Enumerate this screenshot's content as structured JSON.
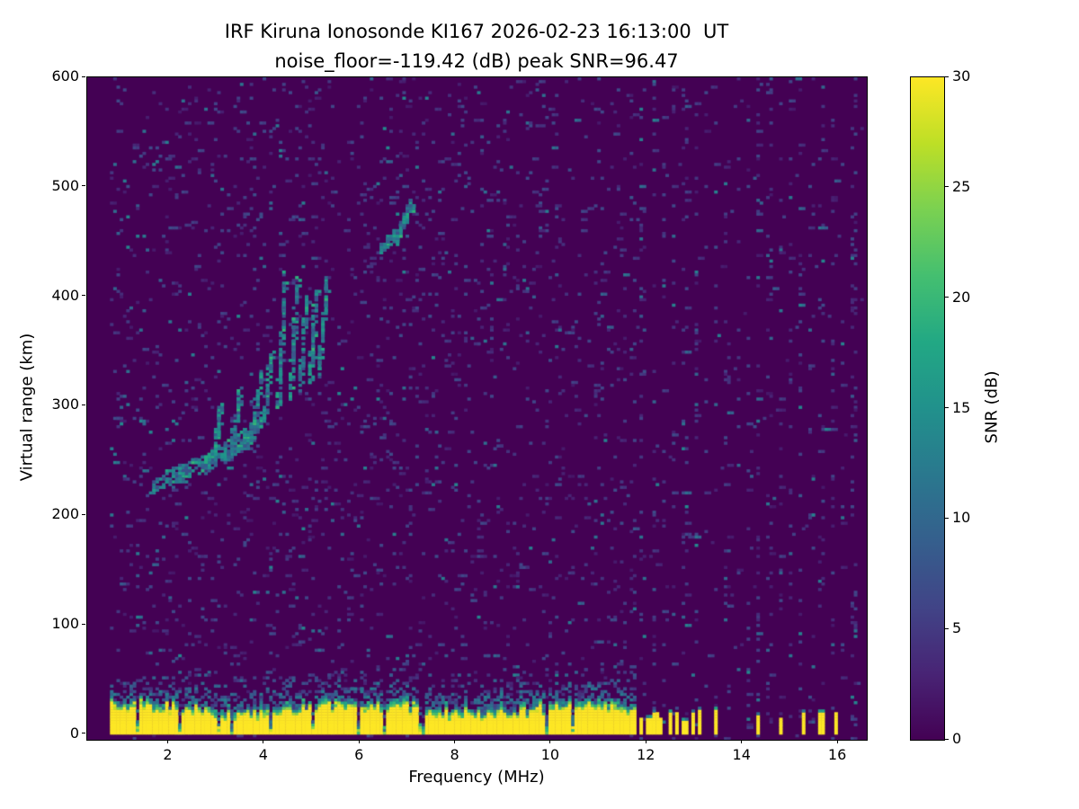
{
  "chart_data": {
    "type": "heatmap",
    "title": "IRF Kiruna Ionosonde KI167 2026-02-23 16:13:00  UT",
    "subtitle": "noise_floor=-119.42 (dB) peak SNR=96.47",
    "station": "IRF Kiruna Ionosonde KI167",
    "timestamp_ut": "2026-02-23 16:13:00 UT",
    "noise_floor_db": -119.42,
    "peak_snr_db": 96.47,
    "xlabel": "Frequency (MHz)",
    "ylabel": "Virtual range (km)",
    "xlim": [
      0.3,
      16.6
    ],
    "ylim": [
      -5,
      600
    ],
    "xticks": [
      2,
      4,
      6,
      8,
      10,
      12,
      14,
      16
    ],
    "yticks": [
      0,
      100,
      200,
      300,
      400,
      500,
      600
    ],
    "colorbar": {
      "label": "SNR (dB)",
      "min": 0,
      "max": 30,
      "ticks": [
        0,
        5,
        10,
        15,
        20,
        25,
        30
      ],
      "colormap": "viridis"
    },
    "colormap_stops": [
      [
        0.0,
        "#440154"
      ],
      [
        0.1,
        "#482475"
      ],
      [
        0.2,
        "#414487"
      ],
      [
        0.3,
        "#355f8d"
      ],
      [
        0.4,
        "#2a788e"
      ],
      [
        0.5,
        "#21918c"
      ],
      [
        0.6,
        "#22a884"
      ],
      [
        0.7,
        "#44bf70"
      ],
      [
        0.8,
        "#7ad151"
      ],
      [
        0.9,
        "#bddf26"
      ],
      [
        1.0,
        "#fde725"
      ]
    ],
    "noise_speckle": {
      "density": 0.05,
      "snr_low_db": 2,
      "snr_high_db": 14
    },
    "ground_return": {
      "freq_start_mhz": 0.8,
      "freq_end_mhz": 11.75,
      "top_km_mean": 27,
      "snr_db": 30
    },
    "ground_notches_mhz": [
      1.35,
      2.25,
      3.05,
      3.35,
      4.15,
      5.0,
      5.95,
      6.5,
      7.3,
      9.9,
      10.45
    ],
    "ground_stubs_mhz": [
      11.85,
      12.0,
      12.15,
      12.3,
      12.46,
      12.62,
      12.78,
      12.95,
      13.1,
      13.45,
      14.3,
      14.78,
      15.3,
      15.62,
      15.95
    ],
    "interference_columns_mhz": [
      11.7,
      11.92,
      12.14,
      12.36,
      12.58,
      12.8,
      13.02,
      13.24,
      13.46,
      13.68,
      13.9,
      14.12,
      14.34,
      14.56,
      14.78,
      15.0,
      15.22,
      15.44,
      15.66,
      15.88,
      16.1,
      16.32
    ],
    "echo_trace_segments": [
      {
        "f0": 1.65,
        "r0": 227,
        "f1": 2.2,
        "r1": 238,
        "w": 14,
        "n": 55
      },
      {
        "f0": 2.2,
        "r0": 237,
        "f1": 2.75,
        "r1": 248,
        "w": 16,
        "n": 70
      },
      {
        "f0": 2.75,
        "r0": 246,
        "f1": 3.2,
        "r1": 259,
        "w": 16,
        "n": 80
      },
      {
        "f0": 3.2,
        "r0": 256,
        "f1": 3.65,
        "r1": 273,
        "w": 18,
        "n": 90
      },
      {
        "f0": 3.6,
        "r0": 268,
        "f1": 3.95,
        "r1": 289,
        "w": 16,
        "n": 75
      },
      {
        "f0": 2.95,
        "r0": 252,
        "f1": 3.1,
        "r1": 300,
        "w": 10,
        "n": 40
      },
      {
        "f0": 3.35,
        "r0": 262,
        "f1": 3.5,
        "r1": 312,
        "w": 10,
        "n": 45
      },
      {
        "f0": 3.75,
        "r0": 272,
        "f1": 3.95,
        "r1": 332,
        "w": 10,
        "n": 55
      },
      {
        "f0": 4.0,
        "r0": 286,
        "f1": 4.15,
        "r1": 348,
        "w": 10,
        "n": 55
      },
      {
        "f0": 4.3,
        "r0": 298,
        "f1": 4.45,
        "r1": 420,
        "w": 9,
        "n": 95
      },
      {
        "f0": 4.55,
        "r0": 308,
        "f1": 4.7,
        "r1": 416,
        "w": 9,
        "n": 85
      },
      {
        "f0": 4.75,
        "r0": 314,
        "f1": 4.9,
        "r1": 400,
        "w": 9,
        "n": 70
      },
      {
        "f0": 4.95,
        "r0": 318,
        "f1": 5.1,
        "r1": 404,
        "w": 9,
        "n": 75
      },
      {
        "f0": 5.15,
        "r0": 330,
        "f1": 5.32,
        "r1": 414,
        "w": 8,
        "n": 70
      },
      {
        "f0": 6.45,
        "r0": 443,
        "f1": 6.8,
        "r1": 459,
        "w": 9,
        "n": 55
      },
      {
        "f0": 6.75,
        "r0": 452,
        "f1": 7.12,
        "r1": 487,
        "w": 10,
        "n": 65
      }
    ]
  }
}
